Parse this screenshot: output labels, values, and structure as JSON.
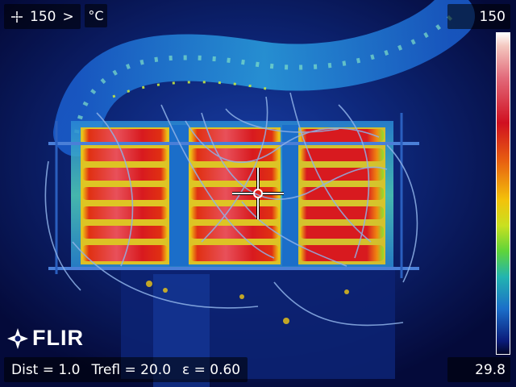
{
  "overlay": {
    "spot_icon": "spot-meter-icon",
    "spot_value": "150",
    "expand_glyph": ">",
    "unit": "°C",
    "brand": "FLIR"
  },
  "scale": {
    "max": "150",
    "min": "29.8"
  },
  "parameters": {
    "dist": "Dist = 1.0",
    "trefl": "Trefl = 20.0",
    "emissivity": "ε = 0.60"
  },
  "colors": {
    "background": "#0a1560",
    "hot": "#d81a1f",
    "warm": "#f0c814",
    "cool": "#1e6ad8",
    "palette": "iron-rainbow"
  }
}
